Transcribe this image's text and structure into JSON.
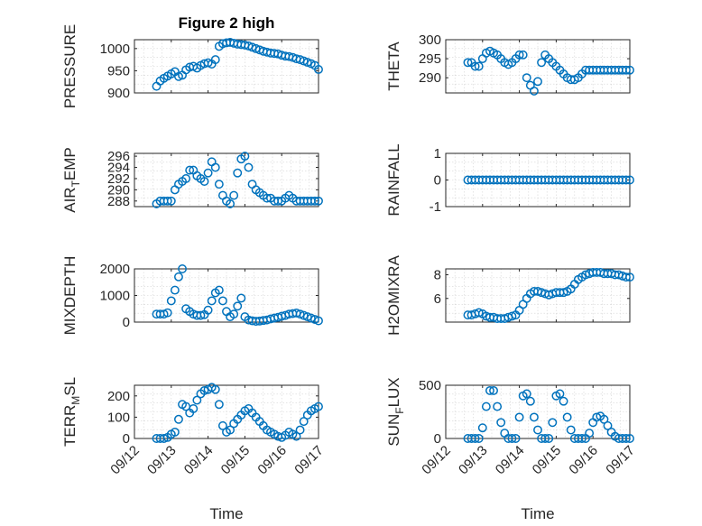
{
  "figure": {
    "background": "#ffffff",
    "marker_color": "#0072BD"
  },
  "chart_data": [
    {
      "type": "scatter",
      "title": "Figure 2 high",
      "ylabel": "PRESSURE",
      "xlabel": "",
      "xlim": [
        0,
        5
      ],
      "ylim": [
        900,
        1020
      ],
      "yticks": [
        900,
        950,
        1000
      ],
      "ytick_labels": [
        "900",
        "950",
        "1000"
      ],
      "xticks": [
        0,
        1,
        2,
        3,
        4,
        5
      ],
      "xtick_labels": [],
      "grid": true,
      "x": [
        0.6,
        0.7,
        0.8,
        0.9,
        1.0,
        1.1,
        1.2,
        1.3,
        1.4,
        1.5,
        1.6,
        1.7,
        1.8,
        1.9,
        2.0,
        2.1,
        2.2,
        2.3,
        2.4,
        2.5,
        2.6,
        2.7,
        2.8,
        2.9,
        3.0,
        3.1,
        3.2,
        3.3,
        3.4,
        3.5,
        3.6,
        3.7,
        3.8,
        3.9,
        4.0,
        4.1,
        4.2,
        4.3,
        4.4,
        4.5,
        4.6,
        4.7,
        4.8,
        4.9,
        5.0
      ],
      "y": [
        915,
        927,
        933,
        938,
        943,
        948,
        937,
        940,
        952,
        958,
        960,
        956,
        962,
        966,
        968,
        965,
        975,
        1005,
        1011,
        1013,
        1014,
        1012,
        1010,
        1009,
        1008,
        1006,
        1003,
        1000,
        997,
        994,
        992,
        990,
        989,
        988,
        985,
        983,
        982,
        980,
        977,
        975,
        972,
        969,
        966,
        962,
        953
      ]
    },
    {
      "type": "scatter",
      "title": "",
      "ylabel": "THETA",
      "xlabel": "",
      "xlim": [
        0,
        5
      ],
      "ylim": [
        286,
        300
      ],
      "yticks": [
        290,
        295,
        300
      ],
      "ytick_labels": [
        "290",
        "295",
        "300"
      ],
      "xticks": [
        0,
        1,
        2,
        3,
        4,
        5
      ],
      "xtick_labels": [],
      "grid": true,
      "x": [
        0.6,
        0.7,
        0.8,
        0.9,
        1.0,
        1.1,
        1.2,
        1.3,
        1.4,
        1.5,
        1.6,
        1.7,
        1.8,
        1.9,
        2.0,
        2.1,
        2.2,
        2.3,
        2.4,
        2.5,
        2.6,
        2.7,
        2.8,
        2.9,
        3.0,
        3.1,
        3.2,
        3.3,
        3.4,
        3.5,
        3.6,
        3.7,
        3.8,
        3.9,
        4.0,
        4.1,
        4.2,
        4.3,
        4.4,
        4.5,
        4.6,
        4.7,
        4.8,
        4.9,
        5.0
      ],
      "y": [
        294,
        294,
        293,
        293,
        295,
        296.5,
        297,
        296.5,
        296,
        295,
        294,
        293.5,
        294,
        295,
        296,
        296,
        290,
        288,
        286.5,
        289,
        294,
        296,
        295,
        294,
        293,
        292,
        291,
        290,
        289.5,
        289.5,
        290,
        291,
        292,
        292,
        292,
        292,
        292,
        292,
        292,
        292,
        292,
        292,
        292,
        292,
        292
      ]
    },
    {
      "type": "scatter",
      "title": "",
      "ylabel": "AIR_TEMP",
      "ylabel_main": "AIR",
      "ylabel_sub": "T",
      "ylabel_rest": "EMP",
      "xlabel": "",
      "xlim": [
        0,
        5
      ],
      "ylim": [
        287,
        296.5
      ],
      "yticks": [
        288,
        290,
        292,
        294,
        296
      ],
      "ytick_labels": [
        "288",
        "290",
        "292",
        "294",
        "296"
      ],
      "xticks": [
        0,
        1,
        2,
        3,
        4,
        5
      ],
      "xtick_labels": [],
      "grid": true,
      "x": [
        0.6,
        0.7,
        0.8,
        0.9,
        1.0,
        1.1,
        1.2,
        1.3,
        1.4,
        1.5,
        1.6,
        1.7,
        1.8,
        1.9,
        2.0,
        2.1,
        2.2,
        2.3,
        2.4,
        2.5,
        2.6,
        2.7,
        2.8,
        2.9,
        3.0,
        3.1,
        3.2,
        3.3,
        3.4,
        3.5,
        3.6,
        3.7,
        3.8,
        3.9,
        4.0,
        4.1,
        4.2,
        4.3,
        4.4,
        4.5,
        4.6,
        4.7,
        4.8,
        4.9,
        5.0
      ],
      "y": [
        287.5,
        288,
        288,
        288,
        288,
        290,
        291,
        291.5,
        292,
        293.5,
        293.5,
        292.5,
        292,
        291.5,
        293,
        295,
        294,
        291,
        289,
        288,
        287.5,
        289,
        293,
        295.5,
        296,
        294,
        291,
        290,
        289.5,
        289,
        288.5,
        288.5,
        288,
        288,
        288,
        288.5,
        289,
        288.5,
        288,
        288,
        288,
        288,
        288,
        288,
        288
      ]
    },
    {
      "type": "scatter",
      "title": "",
      "ylabel": "RAINFALL",
      "xlabel": "",
      "xlim": [
        0,
        5
      ],
      "ylim": [
        -1,
        1
      ],
      "yticks": [
        -1,
        0,
        1
      ],
      "ytick_labels": [
        "-1",
        "0",
        "1"
      ],
      "xticks": [
        0,
        1,
        2,
        3,
        4,
        5
      ],
      "xtick_labels": [],
      "grid": true,
      "x": [
        0.6,
        0.7,
        0.8,
        0.9,
        1.0,
        1.1,
        1.2,
        1.3,
        1.4,
        1.5,
        1.6,
        1.7,
        1.8,
        1.9,
        2.0,
        2.1,
        2.2,
        2.3,
        2.4,
        2.5,
        2.6,
        2.7,
        2.8,
        2.9,
        3.0,
        3.1,
        3.2,
        3.3,
        3.4,
        3.5,
        3.6,
        3.7,
        3.8,
        3.9,
        4.0,
        4.1,
        4.2,
        4.3,
        4.4,
        4.5,
        4.6,
        4.7,
        4.8,
        4.9,
        5.0
      ],
      "y": [
        0,
        0,
        0,
        0,
        0,
        0,
        0,
        0,
        0,
        0,
        0,
        0,
        0,
        0,
        0,
        0,
        0,
        0,
        0,
        0,
        0,
        0,
        0,
        0,
        0,
        0,
        0,
        0,
        0,
        0,
        0,
        0,
        0,
        0,
        0,
        0,
        0,
        0,
        0,
        0,
        0,
        0,
        0,
        0,
        0
      ]
    },
    {
      "type": "scatter",
      "title": "",
      "ylabel": "MIXDEPTH",
      "xlabel": "",
      "xlim": [
        0,
        5
      ],
      "ylim": [
        0,
        2000
      ],
      "yticks": [
        0,
        1000,
        2000
      ],
      "ytick_labels": [
        "0",
        "1000",
        "2000"
      ],
      "xticks": [
        0,
        1,
        2,
        3,
        4,
        5
      ],
      "xtick_labels": [],
      "grid": true,
      "x": [
        0.6,
        0.7,
        0.8,
        0.9,
        1.0,
        1.1,
        1.2,
        1.3,
        1.4,
        1.5,
        1.6,
        1.7,
        1.8,
        1.9,
        2.0,
        2.1,
        2.2,
        2.3,
        2.4,
        2.5,
        2.6,
        2.7,
        2.8,
        2.9,
        3.0,
        3.1,
        3.2,
        3.3,
        3.4,
        3.5,
        3.6,
        3.7,
        3.8,
        3.9,
        4.0,
        4.1,
        4.2,
        4.3,
        4.4,
        4.5,
        4.6,
        4.7,
        4.8,
        4.9,
        5.0
      ],
      "y": [
        300,
        300,
        300,
        350,
        800,
        1200,
        1700,
        2000,
        500,
        400,
        300,
        250,
        250,
        280,
        450,
        800,
        1100,
        1200,
        800,
        400,
        200,
        300,
        600,
        900,
        200,
        80,
        50,
        30,
        40,
        60,
        80,
        120,
        150,
        180,
        220,
        250,
        300,
        320,
        340,
        300,
        250,
        200,
        150,
        100,
        50
      ]
    },
    {
      "type": "scatter",
      "title": "",
      "ylabel": "H2OMIXRA",
      "xlabel": "",
      "xlim": [
        0,
        5
      ],
      "ylim": [
        4,
        8.5
      ],
      "yticks": [
        6,
        8
      ],
      "ytick_labels": [
        "6",
        "8"
      ],
      "xticks": [
        0,
        1,
        2,
        3,
        4,
        5
      ],
      "xtick_labels": [],
      "grid": true,
      "x": [
        0.6,
        0.7,
        0.8,
        0.9,
        1.0,
        1.1,
        1.2,
        1.3,
        1.4,
        1.5,
        1.6,
        1.7,
        1.8,
        1.9,
        2.0,
        2.1,
        2.2,
        2.3,
        2.4,
        2.5,
        2.6,
        2.7,
        2.8,
        2.9,
        3.0,
        3.1,
        3.2,
        3.3,
        3.4,
        3.5,
        3.6,
        3.7,
        3.8,
        3.9,
        4.0,
        4.1,
        4.2,
        4.3,
        4.4,
        4.5,
        4.6,
        4.7,
        4.8,
        4.9,
        5.0
      ],
      "y": [
        4.6,
        4.6,
        4.7,
        4.8,
        4.7,
        4.5,
        4.4,
        4.4,
        4.3,
        4.3,
        4.3,
        4.4,
        4.5,
        4.6,
        5.0,
        5.5,
        6.0,
        6.4,
        6.6,
        6.6,
        6.5,
        6.4,
        6.3,
        6.4,
        6.5,
        6.5,
        6.5,
        6.6,
        6.8,
        7.2,
        7.6,
        7.8,
        8.0,
        8.1,
        8.2,
        8.2,
        8.2,
        8.1,
        8.1,
        8.1,
        8.0,
        8.0,
        7.9,
        7.8,
        7.8
      ]
    },
    {
      "type": "scatter",
      "title": "",
      "ylabel": "TERR_MSL",
      "ylabel_main": "TERR",
      "ylabel_sub": "M",
      "ylabel_rest": "SL",
      "xlabel": "Time",
      "xlim": [
        0,
        5
      ],
      "ylim": [
        0,
        250
      ],
      "yticks": [
        0,
        100,
        200
      ],
      "ytick_labels": [
        "0",
        "100",
        "200"
      ],
      "xticks": [
        0,
        1,
        2,
        3,
        4,
        5
      ],
      "xtick_labels": [
        "09/12",
        "09/13",
        "09/14",
        "09/15",
        "09/16",
        "09/17"
      ],
      "grid": true,
      "x": [
        0.6,
        0.7,
        0.8,
        0.9,
        1.0,
        1.1,
        1.2,
        1.3,
        1.4,
        1.5,
        1.6,
        1.7,
        1.8,
        1.9,
        2.0,
        2.1,
        2.2,
        2.3,
        2.4,
        2.5,
        2.6,
        2.7,
        2.8,
        2.9,
        3.0,
        3.1,
        3.2,
        3.3,
        3.4,
        3.5,
        3.6,
        3.7,
        3.8,
        3.9,
        4.0,
        4.1,
        4.2,
        4.3,
        4.4,
        4.5,
        4.6,
        4.7,
        4.8,
        4.9,
        5.0
      ],
      "y": [
        0,
        0,
        0,
        5,
        20,
        30,
        90,
        160,
        150,
        120,
        140,
        180,
        210,
        225,
        230,
        240,
        230,
        160,
        60,
        30,
        40,
        70,
        90,
        110,
        130,
        140,
        120,
        100,
        80,
        60,
        40,
        30,
        20,
        10,
        5,
        15,
        30,
        20,
        10,
        40,
        80,
        110,
        130,
        140,
        150
      ]
    },
    {
      "type": "scatter",
      "title": "",
      "ylabel": "SUN_FLUX",
      "ylabel_main": "SUN",
      "ylabel_sub": "F",
      "ylabel_rest": "LUX",
      "xlabel": "Time",
      "xlim": [
        0,
        5
      ],
      "ylim": [
        0,
        500
      ],
      "yticks": [
        0,
        500
      ],
      "ytick_labels": [
        "0",
        "500"
      ],
      "xticks": [
        0,
        1,
        2,
        3,
        4,
        5
      ],
      "xtick_labels": [
        "09/12",
        "09/13",
        "09/14",
        "09/15",
        "09/16",
        "09/17"
      ],
      "grid": true,
      "x": [
        0.6,
        0.7,
        0.8,
        0.9,
        1.0,
        1.1,
        1.2,
        1.3,
        1.4,
        1.5,
        1.6,
        1.7,
        1.8,
        1.9,
        2.0,
        2.1,
        2.2,
        2.3,
        2.4,
        2.5,
        2.6,
        2.7,
        2.8,
        2.9,
        3.0,
        3.1,
        3.2,
        3.3,
        3.4,
        3.5,
        3.6,
        3.7,
        3.8,
        3.9,
        4.0,
        4.1,
        4.2,
        4.3,
        4.4,
        4.5,
        4.6,
        4.7,
        4.8,
        4.9,
        5.0
      ],
      "y": [
        0,
        0,
        0,
        0,
        100,
        300,
        450,
        450,
        300,
        150,
        50,
        0,
        0,
        0,
        200,
        400,
        420,
        350,
        200,
        80,
        0,
        0,
        0,
        150,
        400,
        420,
        350,
        200,
        80,
        0,
        0,
        0,
        0,
        50,
        150,
        200,
        210,
        180,
        120,
        60,
        20,
        0,
        0,
        0,
        0
      ]
    }
  ]
}
